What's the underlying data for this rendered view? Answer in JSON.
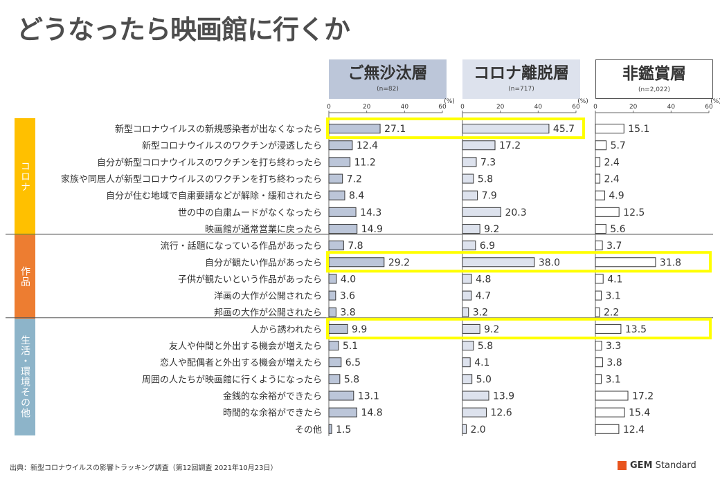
{
  "title": "どうなったら映画館に行くか",
  "percent_unit": "(%)",
  "segments": [
    {
      "name": "ご無沙汰層",
      "n": "(n=82)",
      "color": "#bcc6d9"
    },
    {
      "name": "コロナ離脱層",
      "n": "(n=717)",
      "color": "#dde2ed"
    },
    {
      "name": "非鑑賞層",
      "n": "(n=2,022)",
      "color": "#ffffff"
    }
  ],
  "groups": [
    {
      "label": "コロナ",
      "color": "#ffc000"
    },
    {
      "label": "作品",
      "color": "#ed7d31"
    },
    {
      "label": "生活・環境その他",
      "color": "#8db4c9"
    }
  ],
  "source": "出典：新型コロナウイルスの影響トラッキング調査（第12回調査 2021年10月23日）",
  "logo": {
    "brand": "GEM",
    "rest": "Standard",
    "mark_color": "#e8541e"
  },
  "chart_data": {
    "type": "bar",
    "orientation": "horizontal",
    "xlim": [
      0,
      60
    ],
    "ticks": [
      0,
      20,
      40,
      60
    ],
    "grid": false,
    "categories": [
      "新型コロナウイルスの新規感染者が出なくなったら",
      "新型コロナウイルスのワクチンが浸透したら",
      "自分が新型コロナウイルスのワクチンを打ち終わったら",
      "家族や同居人が新型コロナウイルスのワクチンを打ち終わったら",
      "自分が住む地域で自粛要請などが解除・緩和されたら",
      "世の中の自粛ムードがなくなったら",
      "映画館が通常営業に戻ったら",
      "流行・話題になっている作品があったら",
      "自分が観たい作品があったら",
      "子供が観たいという作品があったら",
      "洋画の大作が公開されたら",
      "邦画の大作が公開されたら",
      "人から誘われたら",
      "友人や仲間と外出する機会が増えたら",
      "恋人や配偶者と外出する機会が増えたら",
      "周囲の人たちが映画館に行くようになったら",
      "金銭的な余裕ができたら",
      "時間的な余裕ができたら",
      "その他"
    ],
    "group_of_category": [
      0,
      0,
      0,
      0,
      0,
      0,
      0,
      1,
      1,
      1,
      1,
      1,
      2,
      2,
      2,
      2,
      2,
      2,
      2
    ],
    "series": [
      {
        "name": "ご無沙汰層",
        "values": [
          27.1,
          12.4,
          11.2,
          7.2,
          8.4,
          14.3,
          14.9,
          7.8,
          29.2,
          4.0,
          3.6,
          3.8,
          9.9,
          5.1,
          6.5,
          5.8,
          13.1,
          14.8,
          1.5
        ]
      },
      {
        "name": "コロナ離脱層",
        "values": [
          45.7,
          17.2,
          7.3,
          5.8,
          7.9,
          20.3,
          9.2,
          6.9,
          38.0,
          4.8,
          4.7,
          3.2,
          9.2,
          5.8,
          4.1,
          5.0,
          13.9,
          12.6,
          2.0
        ]
      },
      {
        "name": "非鑑賞層",
        "values": [
          15.1,
          5.7,
          2.4,
          2.4,
          4.9,
          12.5,
          5.6,
          3.7,
          31.8,
          4.1,
          3.1,
          2.2,
          13.5,
          3.3,
          3.8,
          3.1,
          17.2,
          15.4,
          12.4
        ]
      }
    ],
    "highlights": [
      {
        "row": 0,
        "series": [
          0,
          1
        ]
      },
      {
        "row": 8,
        "series": [
          0,
          1,
          2
        ]
      },
      {
        "row": 12,
        "series": [
          0,
          1,
          2
        ]
      }
    ]
  }
}
